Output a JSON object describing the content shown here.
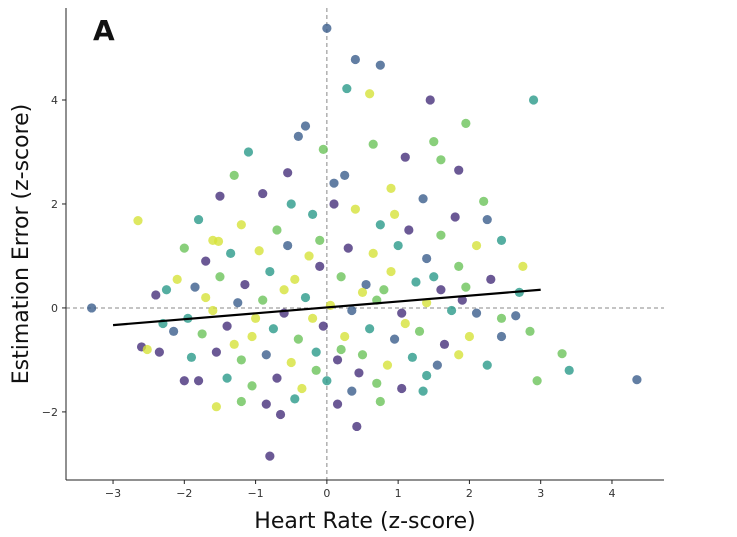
{
  "chart_data": {
    "type": "scatter",
    "panel_label": "A",
    "xlabel": "Heart Rate (z-score)",
    "ylabel": "Estimation Error (z-score)",
    "xlim": [
      -3.66,
      4.73
    ],
    "ylim": [
      -3.31,
      5.77
    ],
    "xticks": [
      -3,
      -2,
      -1,
      0,
      1,
      2,
      3,
      4
    ],
    "yticks": [
      -2,
      0,
      2,
      4
    ],
    "reference_lines": {
      "x": 0,
      "y": 0,
      "style": "dashed"
    },
    "regression_line": {
      "x": [
        -3,
        3
      ],
      "y": [
        -0.33,
        0.35
      ],
      "color": "#000000"
    },
    "palette": [
      "#46307a",
      "#3b5e8c",
      "#2a9a8a",
      "#6cc35a",
      "#d6e23a"
    ],
    "grid": false,
    "legend": "none",
    "points_note": "[x, y, color_index]",
    "points": [
      [
        -3.3,
        0,
        1
      ],
      [
        -2.65,
        1.68,
        4
      ],
      [
        0,
        5.38,
        1
      ],
      [
        0.4,
        4.78,
        1
      ],
      [
        0.75,
        4.67,
        1
      ],
      [
        0.28,
        4.22,
        2
      ],
      [
        0.6,
        4.12,
        4
      ],
      [
        1.45,
        4.0,
        0
      ],
      [
        2.9,
        4.0,
        2
      ],
      [
        1.95,
        3.55,
        3
      ],
      [
        -0.3,
        3.5,
        1
      ],
      [
        -0.4,
        3.3,
        1
      ],
      [
        1.5,
        3.2,
        3
      ],
      [
        4.35,
        -1.38,
        1
      ],
      [
        3.4,
        -1.2,
        2
      ],
      [
        2.95,
        -1.4,
        3
      ],
      [
        3.3,
        -0.88,
        3
      ],
      [
        -0.8,
        -2.85,
        0
      ],
      [
        0.42,
        -2.28,
        0
      ],
      [
        0.15,
        -1.85,
        0
      ],
      [
        -1.55,
        -1.9,
        4
      ],
      [
        -2.6,
        -0.75,
        0
      ],
      [
        -2.52,
        -0.8,
        4
      ],
      [
        -2.35,
        -0.85,
        0
      ],
      [
        -2.25,
        0.35,
        2
      ],
      [
        -2.4,
        0.25,
        0
      ],
      [
        -1.6,
        1.3,
        4
      ],
      [
        -1.52,
        1.28,
        4
      ],
      [
        -2.0,
        -1.4,
        0
      ],
      [
        2.75,
        0.8,
        4
      ],
      [
        2.65,
        -0.15,
        1
      ],
      [
        -0.05,
        3.05,
        3
      ],
      [
        1.1,
        2.9,
        0
      ],
      [
        0.65,
        3.15,
        3
      ],
      [
        -1.1,
        3.0,
        2
      ],
      [
        1.6,
        2.85,
        3
      ],
      [
        2.2,
        2.05,
        3
      ],
      [
        1.85,
        2.65,
        0
      ],
      [
        -1.3,
        2.55,
        3
      ],
      [
        0.25,
        2.55,
        1
      ],
      [
        -0.9,
        2.2,
        0
      ],
      [
        -0.5,
        2.0,
        2
      ],
      [
        0.1,
        2.4,
        1
      ],
      [
        0.9,
        2.3,
        4
      ],
      [
        1.35,
        2.1,
        1
      ],
      [
        1.8,
        1.75,
        0
      ],
      [
        2.25,
        1.7,
        1
      ],
      [
        2.45,
        1.3,
        2
      ],
      [
        -1.5,
        2.15,
        0
      ],
      [
        -1.8,
        1.7,
        2
      ],
      [
        -1.2,
        1.6,
        4
      ],
      [
        -0.7,
        1.5,
        3
      ],
      [
        -0.2,
        1.8,
        2
      ],
      [
        0.4,
        1.9,
        4
      ],
      [
        0.75,
        1.6,
        2
      ],
      [
        1.15,
        1.5,
        0
      ],
      [
        1.6,
        1.4,
        3
      ],
      [
        2.1,
        1.2,
        4
      ],
      [
        -2.0,
        1.15,
        3
      ],
      [
        -1.7,
        0.9,
        0
      ],
      [
        -1.35,
        1.05,
        2
      ],
      [
        -0.95,
        1.1,
        4
      ],
      [
        -0.55,
        1.2,
        1
      ],
      [
        -0.1,
        1.3,
        3
      ],
      [
        0.3,
        1.15,
        0
      ],
      [
        0.65,
        1.05,
        4
      ],
      [
        1.0,
        1.2,
        2
      ],
      [
        1.4,
        0.95,
        1
      ],
      [
        1.85,
        0.8,
        3
      ],
      [
        2.3,
        0.55,
        0
      ],
      [
        -2.1,
        0.55,
        4
      ],
      [
        -1.85,
        0.4,
        1
      ],
      [
        -1.5,
        0.6,
        3
      ],
      [
        -1.15,
        0.45,
        0
      ],
      [
        -0.8,
        0.7,
        2
      ],
      [
        -0.45,
        0.55,
        4
      ],
      [
        -0.1,
        0.8,
        0
      ],
      [
        0.2,
        0.6,
        3
      ],
      [
        0.55,
        0.45,
        1
      ],
      [
        0.9,
        0.7,
        4
      ],
      [
        1.25,
        0.5,
        2
      ],
      [
        1.6,
        0.35,
        0
      ],
      [
        1.95,
        0.4,
        3
      ],
      [
        -1.95,
        -0.2,
        2
      ],
      [
        -1.6,
        -0.05,
        4
      ],
      [
        -1.25,
        0.1,
        1
      ],
      [
        -0.9,
        0.15,
        3
      ],
      [
        -0.6,
        -0.1,
        0
      ],
      [
        -0.3,
        0.2,
        2
      ],
      [
        0.05,
        0.05,
        4
      ],
      [
        0.35,
        -0.05,
        1
      ],
      [
        0.7,
        0.15,
        3
      ],
      [
        1.05,
        -0.1,
        0
      ],
      [
        1.4,
        0.1,
        4
      ],
      [
        1.75,
        -0.05,
        2
      ],
      [
        2.1,
        -0.1,
        1
      ],
      [
        2.45,
        -0.2,
        3
      ],
      [
        -2.15,
        -0.45,
        1
      ],
      [
        -1.75,
        -0.5,
        3
      ],
      [
        -1.4,
        -0.35,
        0
      ],
      [
        -1.05,
        -0.55,
        4
      ],
      [
        -0.75,
        -0.4,
        2
      ],
      [
        -0.4,
        -0.6,
        3
      ],
      [
        -0.05,
        -0.35,
        0
      ],
      [
        0.25,
        -0.55,
        4
      ],
      [
        0.6,
        -0.4,
        2
      ],
      [
        0.95,
        -0.6,
        1
      ],
      [
        1.3,
        -0.45,
        3
      ],
      [
        1.65,
        -0.7,
        0
      ],
      [
        2.0,
        -0.55,
        4
      ],
      [
        2.45,
        -0.55,
        1
      ],
      [
        2.85,
        -0.45,
        3
      ],
      [
        -1.9,
        -0.95,
        2
      ],
      [
        -1.55,
        -0.85,
        0
      ],
      [
        -1.2,
        -1.0,
        3
      ],
      [
        -0.85,
        -0.9,
        1
      ],
      [
        -0.5,
        -1.05,
        4
      ],
      [
        -0.15,
        -0.85,
        2
      ],
      [
        0.15,
        -1.0,
        0
      ],
      [
        0.5,
        -0.9,
        3
      ],
      [
        0.85,
        -1.1,
        4
      ],
      [
        1.2,
        -0.95,
        2
      ],
      [
        1.55,
        -1.1,
        1
      ],
      [
        1.85,
        -0.9,
        4
      ],
      [
        2.25,
        -1.1,
        2
      ],
      [
        -1.8,
        -1.4,
        0
      ],
      [
        -1.4,
        -1.35,
        2
      ],
      [
        -1.05,
        -1.5,
        3
      ],
      [
        -0.7,
        -1.35,
        0
      ],
      [
        -0.35,
        -1.55,
        4
      ],
      [
        0.0,
        -1.4,
        2
      ],
      [
        0.35,
        -1.6,
        1
      ],
      [
        0.7,
        -1.45,
        3
      ],
      [
        1.05,
        -1.55,
        0
      ],
      [
        1.4,
        -1.3,
        2
      ],
      [
        -1.2,
        -1.8,
        3
      ],
      [
        -0.85,
        -1.85,
        0
      ],
      [
        -0.45,
        -1.75,
        2
      ],
      [
        0.75,
        -1.8,
        3
      ],
      [
        1.35,
        -1.6,
        2
      ],
      [
        -0.65,
        -2.05,
        0
      ],
      [
        -1.0,
        -0.2,
        4
      ],
      [
        -0.2,
        -0.2,
        4
      ],
      [
        0.5,
        0.3,
        4
      ],
      [
        0.8,
        0.35,
        3
      ],
      [
        -0.6,
        0.35,
        4
      ],
      [
        1.1,
        -0.3,
        4
      ],
      [
        -1.3,
        -0.7,
        4
      ],
      [
        0.2,
        -0.8,
        3
      ],
      [
        -0.25,
        1.0,
        4
      ],
      [
        0.95,
        1.8,
        4
      ],
      [
        -1.7,
        0.2,
        4
      ],
      [
        1.9,
        0.15,
        0
      ],
      [
        -0.15,
        -1.2,
        3
      ],
      [
        0.45,
        -1.25,
        0
      ],
      [
        1.5,
        0.6,
        2
      ],
      [
        -2.3,
        -0.3,
        2
      ],
      [
        2.7,
        0.3,
        2
      ],
      [
        0.1,
        2.0,
        0
      ],
      [
        -0.55,
        2.6,
        0
      ]
    ]
  }
}
